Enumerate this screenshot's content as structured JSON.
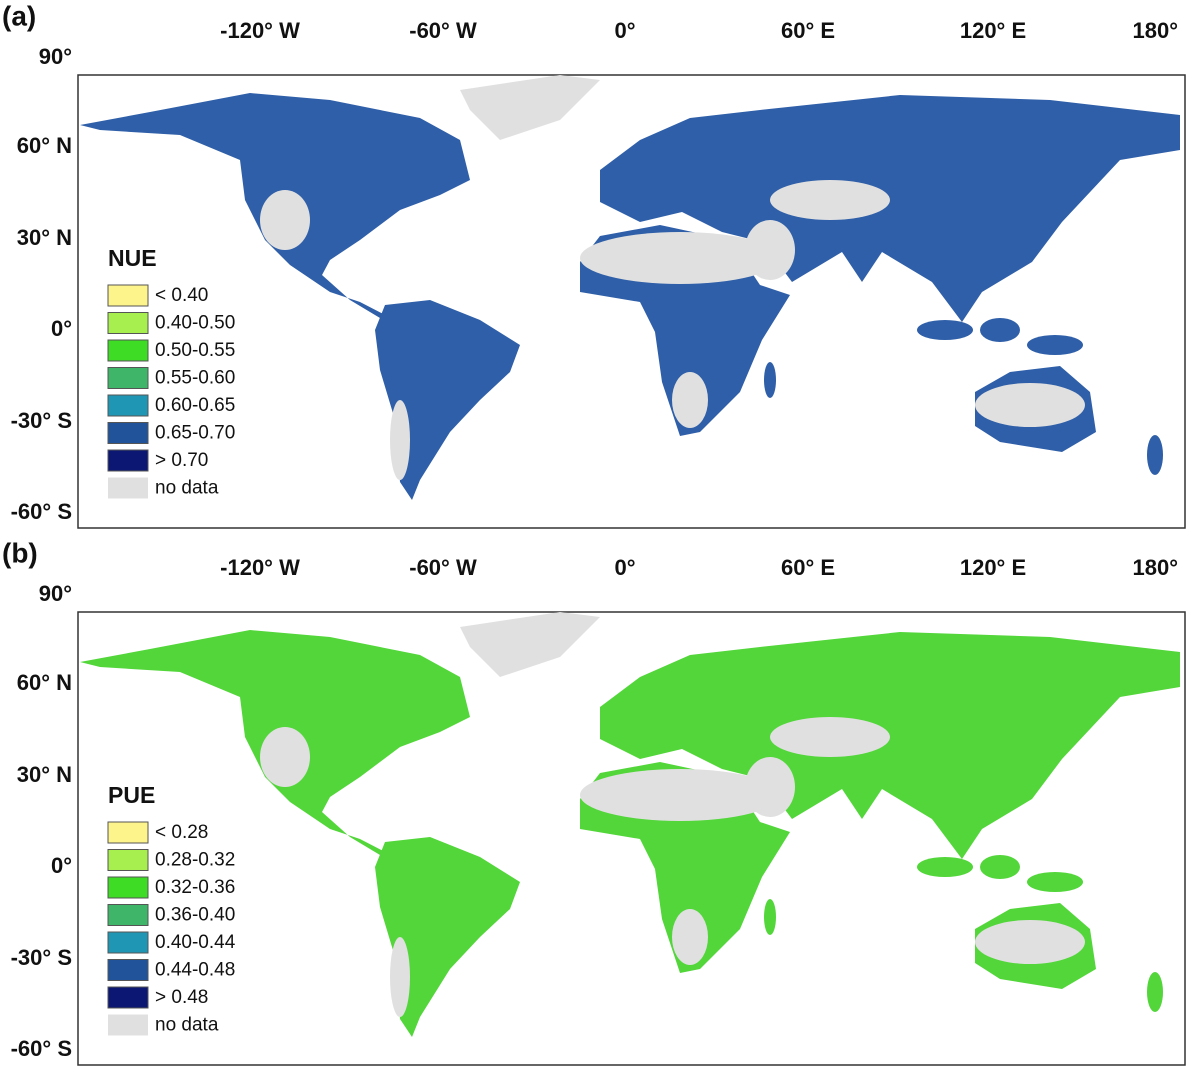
{
  "panels": [
    {
      "label": "(a)",
      "x_labels": [
        "-120° W",
        "-60° W",
        "0°",
        "60° E",
        "120° E",
        "180°"
      ],
      "y_labels": [
        "90°",
        "60° N",
        "30° N",
        "0°",
        "-30° S",
        "-60° S"
      ],
      "land_color": "#2f5fa8",
      "legend": {
        "title": "NUE",
        "items": [
          {
            "label": "< 0.40",
            "color": "#fdf48c"
          },
          {
            "label": "0.40-0.50",
            "color": "#a6ef4f"
          },
          {
            "label": "0.50-0.55",
            "color": "#3fdc25"
          },
          {
            "label": "0.55-0.60",
            "color": "#3fb56a"
          },
          {
            "label": "0.60-0.65",
            "color": "#1f97b4"
          },
          {
            "label": "0.65-0.70",
            "color": "#21539b"
          },
          {
            "label": "> 0.70",
            "color": "#0c1774"
          },
          {
            "label": "no data",
            "color": "#e0e0e0"
          }
        ]
      }
    },
    {
      "label": "(b)",
      "x_labels": [
        "-120° W",
        "-60° W",
        "0°",
        "60° E",
        "120° E",
        "180°"
      ],
      "y_labels": [
        "90°",
        "60° N",
        "30° N",
        "0°",
        "-30° S",
        "-60° S"
      ],
      "land_color": "#52d63a",
      "legend": {
        "title": "PUE",
        "items": [
          {
            "label": "< 0.28",
            "color": "#fdf48c"
          },
          {
            "label": "0.28-0.32",
            "color": "#a6ef4f"
          },
          {
            "label": "0.32-0.36",
            "color": "#3fdc25"
          },
          {
            "label": "0.36-0.40",
            "color": "#3fb56a"
          },
          {
            "label": "0.40-0.44",
            "color": "#1f97b4"
          },
          {
            "label": "0.44-0.48",
            "color": "#21539b"
          },
          {
            "label": "> 0.48",
            "color": "#0c1774"
          },
          {
            "label": "no data",
            "color": "#e0e0e0"
          }
        ]
      }
    }
  ]
}
